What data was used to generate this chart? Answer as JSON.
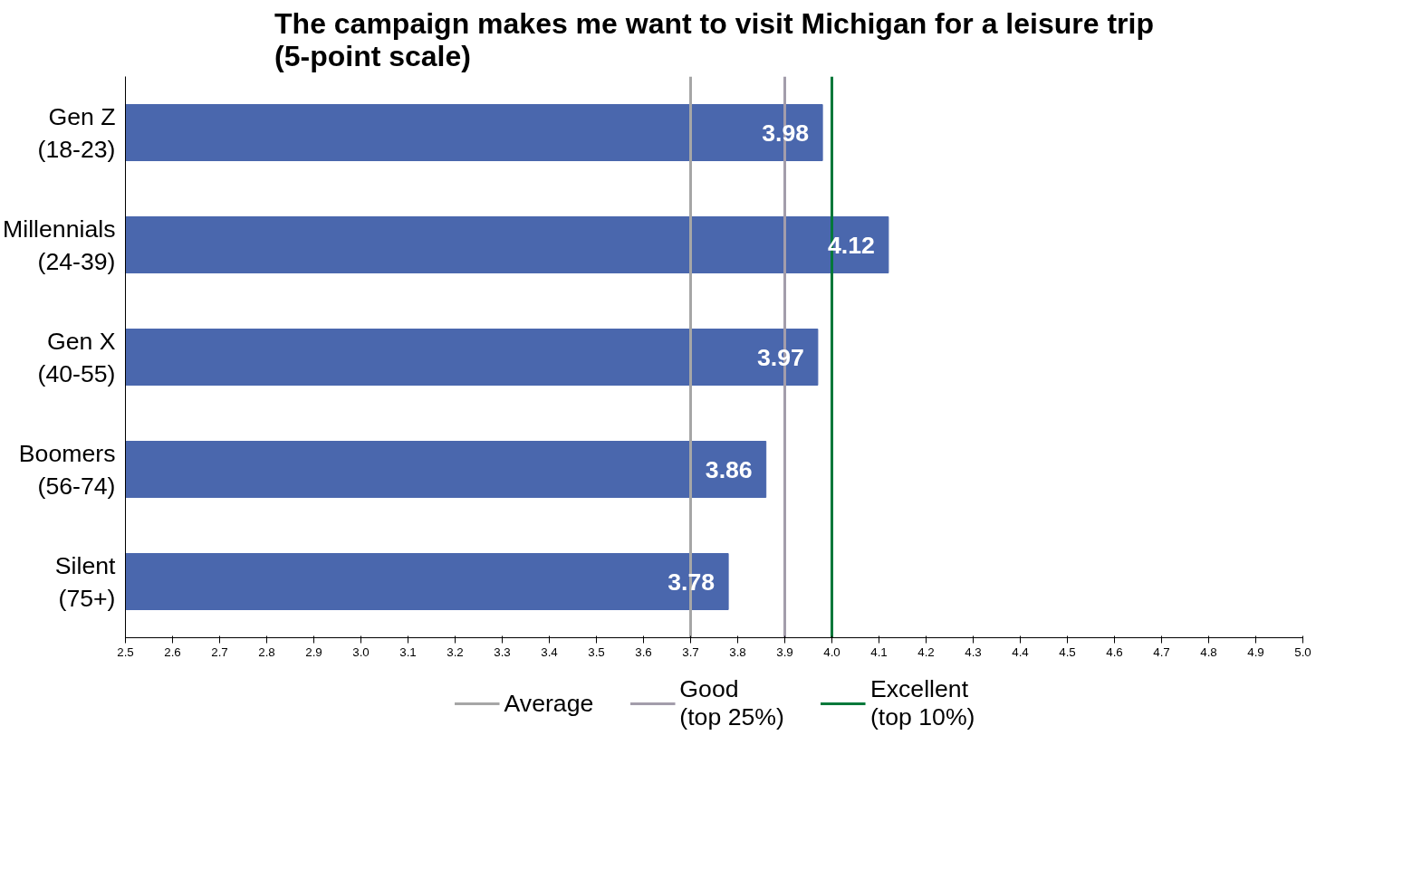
{
  "chart_data": {
    "type": "bar",
    "orientation": "horizontal",
    "title": "The campaign makes me want to visit Michigan for a leisure trip\n(5-point scale)",
    "categories": [
      "Gen Z\n(18-23)",
      "Millennials\n(24-39)",
      "Gen X\n(40-55)",
      "Boomers\n(56-74)",
      "Silent\n(75+)"
    ],
    "values": [
      3.98,
      4.12,
      3.97,
      3.86,
      3.78
    ],
    "color": "#4a67ad",
    "data_labels": true,
    "xlim": [
      2.5,
      5.0
    ],
    "xticks": [
      2.5,
      2.6,
      2.7,
      2.8,
      2.9,
      {
        "value": 3.0,
        "label": "3.0"
      },
      3.1,
      3.2,
      3.3,
      3.4,
      3.5,
      3.6,
      3.7,
      3.8,
      3.9,
      {
        "value": 4.0,
        "label": "4.0"
      },
      4.1,
      4.2,
      4.3,
      4.4,
      4.5,
      4.6,
      4.7,
      4.8,
      4.9,
      {
        "value": 5.0,
        "label": "5.0"
      }
    ],
    "ref_lines": [
      {
        "axis": "x",
        "value": 3.7,
        "label": "Average",
        "color": "#a6a6a6"
      },
      {
        "axis": "x",
        "value": 3.9,
        "label": "Good\n(top 25%)",
        "color": "#a39dab"
      },
      {
        "axis": "x",
        "value": 4.0,
        "label": "Excellent\n(top 10%)",
        "color": "#00783a"
      }
    ],
    "grid": false,
    "legend": "bottom"
  }
}
